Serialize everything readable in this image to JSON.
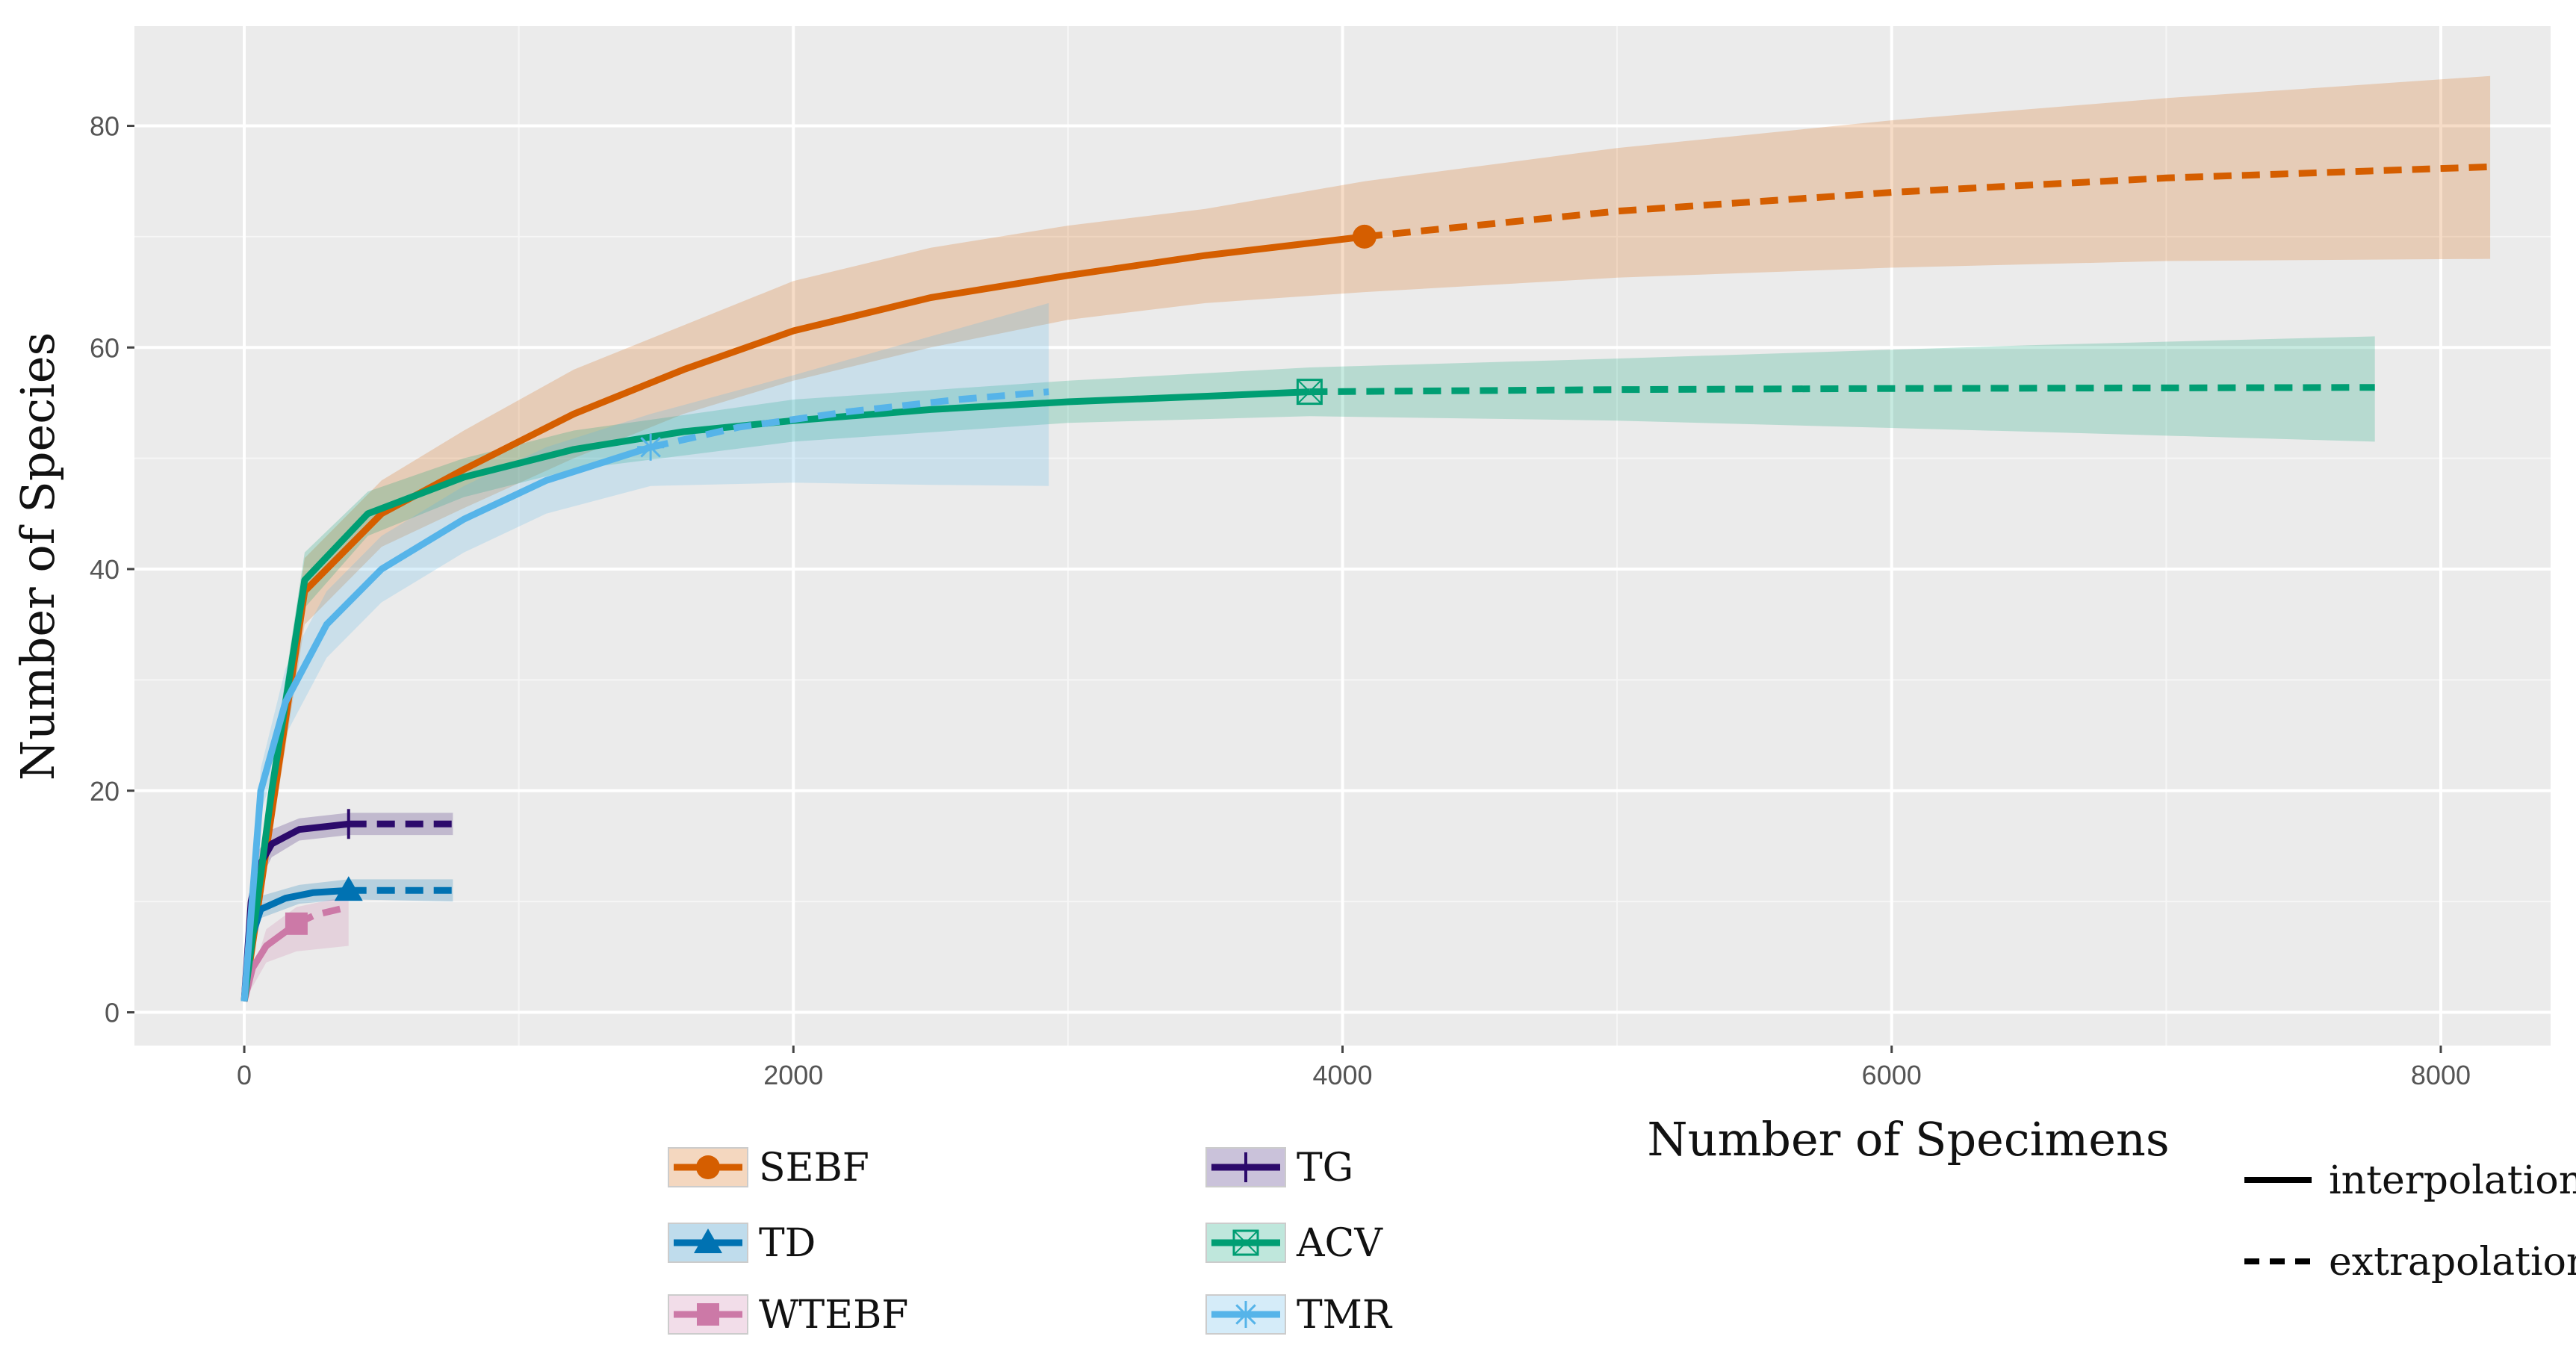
{
  "chart_data": {
    "type": "line",
    "title": "",
    "xlabel": "Number of Specimens",
    "ylabel": "Number of Species",
    "xlim": [
      -400,
      8400
    ],
    "ylim": [
      -3,
      89
    ],
    "x_ticks": [
      0,
      2000,
      4000,
      6000,
      8000
    ],
    "x_tick_labels": [
      "0",
      "2000",
      "4000",
      "6000",
      "8000"
    ],
    "y_ticks": [
      0,
      20,
      40,
      60,
      80
    ],
    "y_tick_labels": [
      "0",
      "20",
      "40",
      "60",
      "80"
    ],
    "grid": true,
    "legend_position": "bottom",
    "series": [
      {
        "name": "SEBF",
        "color": "#D55E00",
        "marker": "circle",
        "observed": [
          4080,
          70
        ],
        "interpolation": [
          [
            0,
            1
          ],
          [
            100,
            18
          ],
          [
            220,
            38
          ],
          [
            500,
            45
          ],
          [
            800,
            49
          ],
          [
            1200,
            54
          ],
          [
            1600,
            58
          ],
          [
            2000,
            61.5
          ],
          [
            2500,
            64.5
          ],
          [
            3000,
            66.5
          ],
          [
            3500,
            68.3
          ],
          [
            4080,
            70
          ]
        ],
        "extrapolation": [
          [
            4080,
            70
          ],
          [
            5000,
            72.3
          ],
          [
            6000,
            74
          ],
          [
            7000,
            75.3
          ],
          [
            8180,
            76.3
          ]
        ],
        "ci_lower": [
          [
            0,
            1
          ],
          [
            100,
            16
          ],
          [
            220,
            35
          ],
          [
            500,
            42
          ],
          [
            800,
            45.5
          ],
          [
            1200,
            50
          ],
          [
            1600,
            54
          ],
          [
            2000,
            57
          ],
          [
            2500,
            60
          ],
          [
            3000,
            62.5
          ],
          [
            3500,
            64
          ],
          [
            4080,
            65
          ],
          [
            5000,
            66.3
          ],
          [
            6000,
            67.2
          ],
          [
            7000,
            67.8
          ],
          [
            8180,
            68
          ]
        ],
        "ci_upper": [
          [
            0,
            1
          ],
          [
            100,
            20
          ],
          [
            220,
            41
          ],
          [
            500,
            48
          ],
          [
            800,
            52.5
          ],
          [
            1200,
            58
          ],
          [
            1600,
            62
          ],
          [
            2000,
            66
          ],
          [
            2500,
            69
          ],
          [
            3000,
            71
          ],
          [
            3500,
            72.5
          ],
          [
            4080,
            75
          ],
          [
            5000,
            78
          ],
          [
            6000,
            80.5
          ],
          [
            7000,
            82.5
          ],
          [
            8180,
            84.5
          ]
        ]
      },
      {
        "name": "TD",
        "color": "#0072B2",
        "marker": "triangle",
        "observed": [
          380,
          11
        ],
        "interpolation": [
          [
            0,
            1
          ],
          [
            30,
            7
          ],
          [
            60,
            9.3
          ],
          [
            150,
            10.3
          ],
          [
            250,
            10.8
          ],
          [
            380,
            11
          ]
        ],
        "extrapolation": [
          [
            380,
            11
          ],
          [
            550,
            11
          ],
          [
            760,
            11
          ]
        ],
        "ci_lower": [
          [
            0,
            1
          ],
          [
            60,
            8.5
          ],
          [
            200,
            9.8
          ],
          [
            380,
            10.2
          ],
          [
            760,
            10
          ]
        ],
        "ci_upper": [
          [
            0,
            1
          ],
          [
            60,
            10.5
          ],
          [
            200,
            11.5
          ],
          [
            380,
            12
          ],
          [
            760,
            12
          ]
        ]
      },
      {
        "name": "WTEBF",
        "color": "#CC79A7",
        "marker": "square",
        "observed": [
          190,
          8
        ],
        "interpolation": [
          [
            0,
            1
          ],
          [
            30,
            4
          ],
          [
            80,
            6
          ],
          [
            190,
            8
          ]
        ],
        "extrapolation": [
          [
            190,
            8
          ],
          [
            260,
            8.8
          ],
          [
            380,
            9.5
          ]
        ],
        "ci_lower": [
          [
            0,
            1
          ],
          [
            80,
            4.5
          ],
          [
            190,
            5.5
          ],
          [
            380,
            6
          ]
        ],
        "ci_upper": [
          [
            0,
            1
          ],
          [
            80,
            7.5
          ],
          [
            190,
            9.5
          ],
          [
            380,
            10.5
          ]
        ]
      },
      {
        "name": "TG",
        "color": "#2C0A6B",
        "marker": "plus",
        "observed": [
          380,
          17
        ],
        "interpolation": [
          [
            0,
            1
          ],
          [
            25,
            10
          ],
          [
            50,
            13
          ],
          [
            100,
            15.2
          ],
          [
            200,
            16.5
          ],
          [
            380,
            17
          ]
        ],
        "extrapolation": [
          [
            380,
            17
          ],
          [
            550,
            17
          ],
          [
            760,
            17
          ]
        ],
        "ci_lower": [
          [
            0,
            1
          ],
          [
            50,
            11.5
          ],
          [
            100,
            14
          ],
          [
            200,
            15.5
          ],
          [
            380,
            16
          ],
          [
            760,
            16
          ]
        ],
        "ci_upper": [
          [
            0,
            1
          ],
          [
            50,
            14.5
          ],
          [
            100,
            16.5
          ],
          [
            200,
            17.5
          ],
          [
            380,
            18
          ],
          [
            760,
            18
          ]
        ]
      },
      {
        "name": "ACV",
        "color": "#009E73",
        "marker": "boxed-x",
        "observed": [
          3880,
          56
        ],
        "interpolation": [
          [
            0,
            1
          ],
          [
            100,
            20
          ],
          [
            220,
            39
          ],
          [
            450,
            45
          ],
          [
            800,
            48.3
          ],
          [
            1200,
            50.8
          ],
          [
            1600,
            52.4
          ],
          [
            2000,
            53.4
          ],
          [
            2500,
            54.4
          ],
          [
            3000,
            55.1
          ],
          [
            3500,
            55.6
          ],
          [
            3880,
            56
          ]
        ],
        "extrapolation": [
          [
            3880,
            56
          ],
          [
            5000,
            56.2
          ],
          [
            6000,
            56.3
          ],
          [
            7000,
            56.35
          ],
          [
            7760,
            56.4
          ]
        ],
        "ci_lower": [
          [
            0,
            1
          ],
          [
            100,
            18
          ],
          [
            220,
            36.5
          ],
          [
            450,
            43
          ],
          [
            800,
            46.5
          ],
          [
            1200,
            49
          ],
          [
            2000,
            51.5
          ],
          [
            3000,
            53.2
          ],
          [
            3880,
            53.8
          ],
          [
            5000,
            53.4
          ],
          [
            6500,
            52.4
          ],
          [
            7760,
            51.5
          ]
        ],
        "ci_upper": [
          [
            0,
            1
          ],
          [
            100,
            22
          ],
          [
            220,
            41.5
          ],
          [
            450,
            47
          ],
          [
            800,
            50
          ],
          [
            1200,
            52.5
          ],
          [
            2000,
            55.3
          ],
          [
            3000,
            57
          ],
          [
            3880,
            58.2
          ],
          [
            5000,
            59
          ],
          [
            6500,
            60.2
          ],
          [
            7760,
            61
          ]
        ]
      },
      {
        "name": "TMR",
        "color": "#56B4E9",
        "marker": "asterisk",
        "observed": [
          1480,
          51
        ],
        "interpolation": [
          [
            0,
            1
          ],
          [
            60,
            20
          ],
          [
            150,
            28
          ],
          [
            300,
            35
          ],
          [
            500,
            40
          ],
          [
            800,
            44.5
          ],
          [
            1100,
            48
          ],
          [
            1480,
            51
          ]
        ],
        "extrapolation": [
          [
            1480,
            51
          ],
          [
            1800,
            52.8
          ],
          [
            2200,
            54.2
          ],
          [
            2600,
            55.3
          ],
          [
            2930,
            56
          ]
        ],
        "ci_lower": [
          [
            0,
            1
          ],
          [
            60,
            18
          ],
          [
            150,
            25
          ],
          [
            300,
            32
          ],
          [
            500,
            37
          ],
          [
            800,
            41.5
          ],
          [
            1100,
            45
          ],
          [
            1480,
            47.5
          ],
          [
            2000,
            47.8
          ],
          [
            2500,
            47.6
          ],
          [
            2930,
            47.5
          ]
        ],
        "ci_upper": [
          [
            0,
            1
          ],
          [
            60,
            22
          ],
          [
            150,
            31
          ],
          [
            300,
            38
          ],
          [
            500,
            43
          ],
          [
            800,
            47.5
          ],
          [
            1100,
            51
          ],
          [
            1480,
            54
          ],
          [
            2000,
            57.5
          ],
          [
            2500,
            61
          ],
          [
            2930,
            64
          ]
        ]
      }
    ],
    "line_types": [
      {
        "name": "interpolation",
        "style": "solid"
      },
      {
        "name": "extrapolation",
        "style": "dashed"
      }
    ]
  }
}
